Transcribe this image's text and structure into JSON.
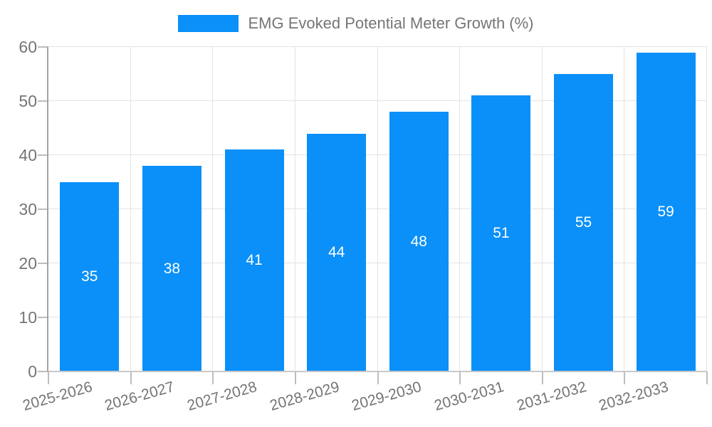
{
  "legend": {
    "label": "EMG Evoked Potential Meter Growth (%)"
  },
  "chart_data": {
    "type": "bar",
    "title": "EMG Evoked Potential Meter Growth (%)",
    "categories": [
      "2025-2026",
      "2026-2027",
      "2027-2028",
      "2028-2029",
      "2029-2030",
      "2030-2031",
      "2031-2032",
      "2032-2033"
    ],
    "values": [
      35,
      38,
      41,
      44,
      48,
      51,
      55,
      59
    ],
    "xlabel": "",
    "ylabel": "",
    "ylim": [
      0,
      60
    ],
    "yticks": [
      0,
      10,
      20,
      30,
      40,
      50,
      60
    ],
    "grid": true,
    "legend_position": "top-center",
    "value_labels": "inside-center",
    "x_tick_rotation_deg": -16
  },
  "colors": {
    "bar": "#0A90F8",
    "value_label": "#FFFFFF",
    "grid": "#E4E4E4",
    "axis": "#A3A3A3",
    "baseline": "#C9C9C9",
    "tick": "#BDBDBD",
    "text": "#757575",
    "background": "#FFFFFF"
  }
}
